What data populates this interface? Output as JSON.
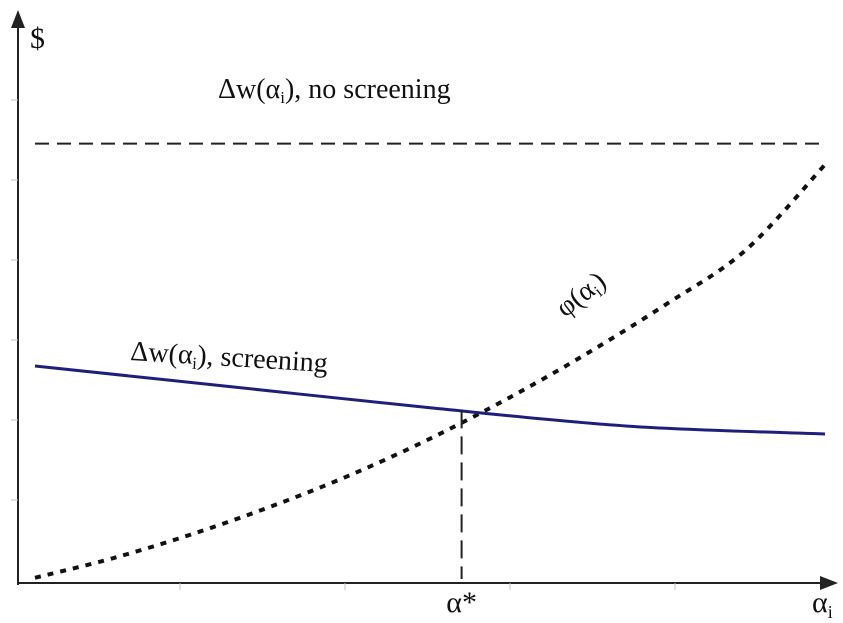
{
  "chart_data": {
    "type": "line",
    "xlabel_main": "α",
    "xlabel_sub": "i",
    "ylabel": "$",
    "xlim": [
      0,
      1
    ],
    "ylim": [
      0,
      1
    ],
    "grid": false,
    "series": [
      {
        "label_pre": "Δw(α",
        "label_sub": "i",
        "label_post": "), no screening",
        "style": "dashed",
        "color": "#222222",
        "x": [
          0.0,
          1.0
        ],
        "y": [
          0.84,
          0.84
        ]
      },
      {
        "label_pre": "φ(α",
        "label_sub": "i",
        "label_post": ")",
        "style": "dotted",
        "color": "#111111",
        "x": [
          0.0,
          0.1,
          0.2,
          0.3,
          0.4,
          0.5,
          0.6,
          0.7,
          0.8,
          0.9,
          1.0
        ],
        "y": [
          0.01,
          0.048,
          0.094,
          0.147,
          0.207,
          0.276,
          0.354,
          0.44,
          0.534,
          0.637,
          0.8
        ]
      },
      {
        "label_pre": "Δw(α",
        "label_sub": "i",
        "label_post": "), screening",
        "style": "solid",
        "color": "#1f1f7a",
        "x": [
          0.0,
          0.25,
          0.5,
          0.75,
          1.0
        ],
        "y": [
          0.415,
          0.375,
          0.335,
          0.3,
          0.285
        ]
      }
    ],
    "annotations": [
      {
        "text": "α*",
        "x": 0.54,
        "y": 0.33,
        "style": "dashed-vertical"
      }
    ]
  }
}
